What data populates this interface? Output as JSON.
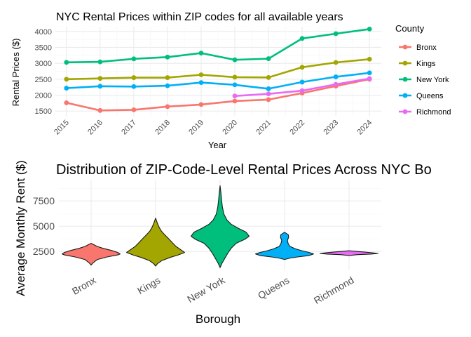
{
  "chart_data": [
    {
      "type": "line",
      "title": "NYC Rental Prices within ZIP codes for all available years",
      "xlabel": "Year",
      "ylabel": "Rental Prices ($)",
      "x": [
        2015,
        2016,
        2017,
        2018,
        2019,
        2020,
        2021,
        2022,
        2023,
        2024
      ],
      "ylim": [
        1350,
        4150
      ],
      "yticks": [
        1500,
        2000,
        2500,
        3000,
        3500,
        4000
      ],
      "grid": true,
      "legend": {
        "title": "County",
        "position": "right"
      },
      "series": [
        {
          "name": "Bronx",
          "color": "#F8766D",
          "values": [
            1760,
            1520,
            1540,
            1640,
            1705,
            1815,
            1860,
            2065,
            2285,
            2500
          ]
        },
        {
          "name": "Kings",
          "color": "#A3A500",
          "values": [
            2500,
            2525,
            2550,
            2550,
            2640,
            2565,
            2555,
            2875,
            3025,
            3130
          ]
        },
        {
          "name": "New York",
          "color": "#00BF7D",
          "values": [
            3030,
            3045,
            3140,
            3195,
            3320,
            3110,
            3145,
            3780,
            3930,
            4075
          ]
        },
        {
          "name": "Queens",
          "color": "#00B0F6",
          "values": [
            2220,
            2280,
            2270,
            2295,
            2395,
            2325,
            2200,
            2410,
            2575,
            2700
          ]
        },
        {
          "name": "Richmond",
          "color": "#E76BF3",
          "x": [
            2020,
            2021,
            2022,
            2023,
            2024
          ],
          "values": [
            1975,
            2040,
            2140,
            2340,
            2520
          ]
        }
      ]
    },
    {
      "type": "violin",
      "title": "Distribution of ZIP-Code-Level Rental Prices Across NYC Bo",
      "xlabel": "Borough",
      "ylabel": "Average Monthly Rent ($)",
      "categories": [
        "Bronx",
        "Kings",
        "New York",
        "Queens",
        "Richmond"
      ],
      "ylim": [
        700,
        9600
      ],
      "yticks": [
        2500,
        5000,
        7500
      ],
      "grid": true,
      "violins": [
        {
          "category": "Bronx",
          "color": "#F8766D",
          "profile": [
            [
              1150,
              0
            ],
            [
              1400,
              0.08
            ],
            [
              1700,
              0.22
            ],
            [
              1950,
              0.55
            ],
            [
              2150,
              0.92
            ],
            [
              2250,
              1.0
            ],
            [
              2400,
              0.92
            ],
            [
              2600,
              0.7
            ],
            [
              2800,
              0.42
            ],
            [
              3000,
              0.2
            ],
            [
              3200,
              0.07
            ],
            [
              3300,
              0
            ]
          ]
        },
        {
          "category": "Kings",
          "color": "#A3A500",
          "profile": [
            [
              1050,
              0
            ],
            [
              1300,
              0.07
            ],
            [
              1600,
              0.22
            ],
            [
              1900,
              0.5
            ],
            [
              2150,
              0.78
            ],
            [
              2400,
              1.0
            ],
            [
              2700,
              0.85
            ],
            [
              3000,
              0.7
            ],
            [
              3300,
              0.6
            ],
            [
              3600,
              0.5
            ],
            [
              3900,
              0.4
            ],
            [
              4200,
              0.3
            ],
            [
              4500,
              0.2
            ],
            [
              4900,
              0.12
            ],
            [
              5300,
              0.06
            ],
            [
              5800,
              0
            ]
          ]
        },
        {
          "category": "New York",
          "color": "#00BF7D",
          "profile": [
            [
              900,
              0
            ],
            [
              1300,
              0.06
            ],
            [
              1800,
              0.16
            ],
            [
              2300,
              0.26
            ],
            [
              2800,
              0.38
            ],
            [
              3300,
              0.55
            ],
            [
              3700,
              0.85
            ],
            [
              4000,
              1.0
            ],
            [
              4400,
              0.9
            ],
            [
              4800,
              0.62
            ],
            [
              5200,
              0.38
            ],
            [
              5600,
              0.24
            ],
            [
              6200,
              0.13
            ],
            [
              6900,
              0.08
            ],
            [
              7600,
              0.05
            ],
            [
              8300,
              0.03
            ],
            [
              9000,
              0
            ]
          ]
        },
        {
          "category": "Queens",
          "color": "#00B0F6",
          "profile": [
            [
              1700,
              0
            ],
            [
              1850,
              0.2
            ],
            [
              1950,
              0.45
            ],
            [
              2100,
              0.85
            ],
            [
              2250,
              1.0
            ],
            [
              2400,
              0.85
            ],
            [
              2550,
              0.62
            ],
            [
              2750,
              0.38
            ],
            [
              3000,
              0.18
            ],
            [
              3300,
              0.12
            ],
            [
              3600,
              0.1
            ],
            [
              3900,
              0.14
            ],
            [
              4150,
              0.13
            ],
            [
              4400,
              0
            ]
          ]
        },
        {
          "category": "Richmond",
          "color": "#E76BF3",
          "profile": [
            [
              2100,
              0
            ],
            [
              2180,
              0.3
            ],
            [
              2240,
              0.75
            ],
            [
              2300,
              1.0
            ],
            [
              2360,
              0.8
            ],
            [
              2430,
              0.55
            ],
            [
              2500,
              0.25
            ],
            [
              2560,
              0
            ]
          ]
        }
      ]
    }
  ]
}
